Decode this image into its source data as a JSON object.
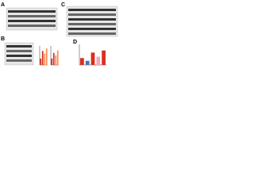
{
  "panels": [
    {
      "label": "A"
    },
    {
      "label": "B",
      "charts": [
        {
          "ylim": [
            0,
            3
          ],
          "values": [
            1,
            2.2,
            1.8,
            2.6
          ],
          "colors": [
            "#d7301f",
            "#d7301f",
            "#fc8d59",
            "#fc8d59"
          ]
        },
        {
          "ylim": [
            0,
            3
          ],
          "values": [
            1,
            1.9,
            1.5,
            2.3
          ],
          "colors": [
            "#d7301f",
            "#d7301f",
            "#fc8d59",
            "#fc8d59"
          ]
        }
      ]
    },
    {
      "label": "C"
    },
    {
      "label": "D",
      "charts": [
        {
          "ylim": [
            0,
            3
          ],
          "values": [
            1,
            0.6,
            1.8,
            1.2,
            2.1
          ],
          "colors": [
            "#d7301f",
            "#4575b4",
            "#d7301f",
            "#f4a6b7",
            "#d7301f"
          ]
        }
      ]
    }
  ]
}
